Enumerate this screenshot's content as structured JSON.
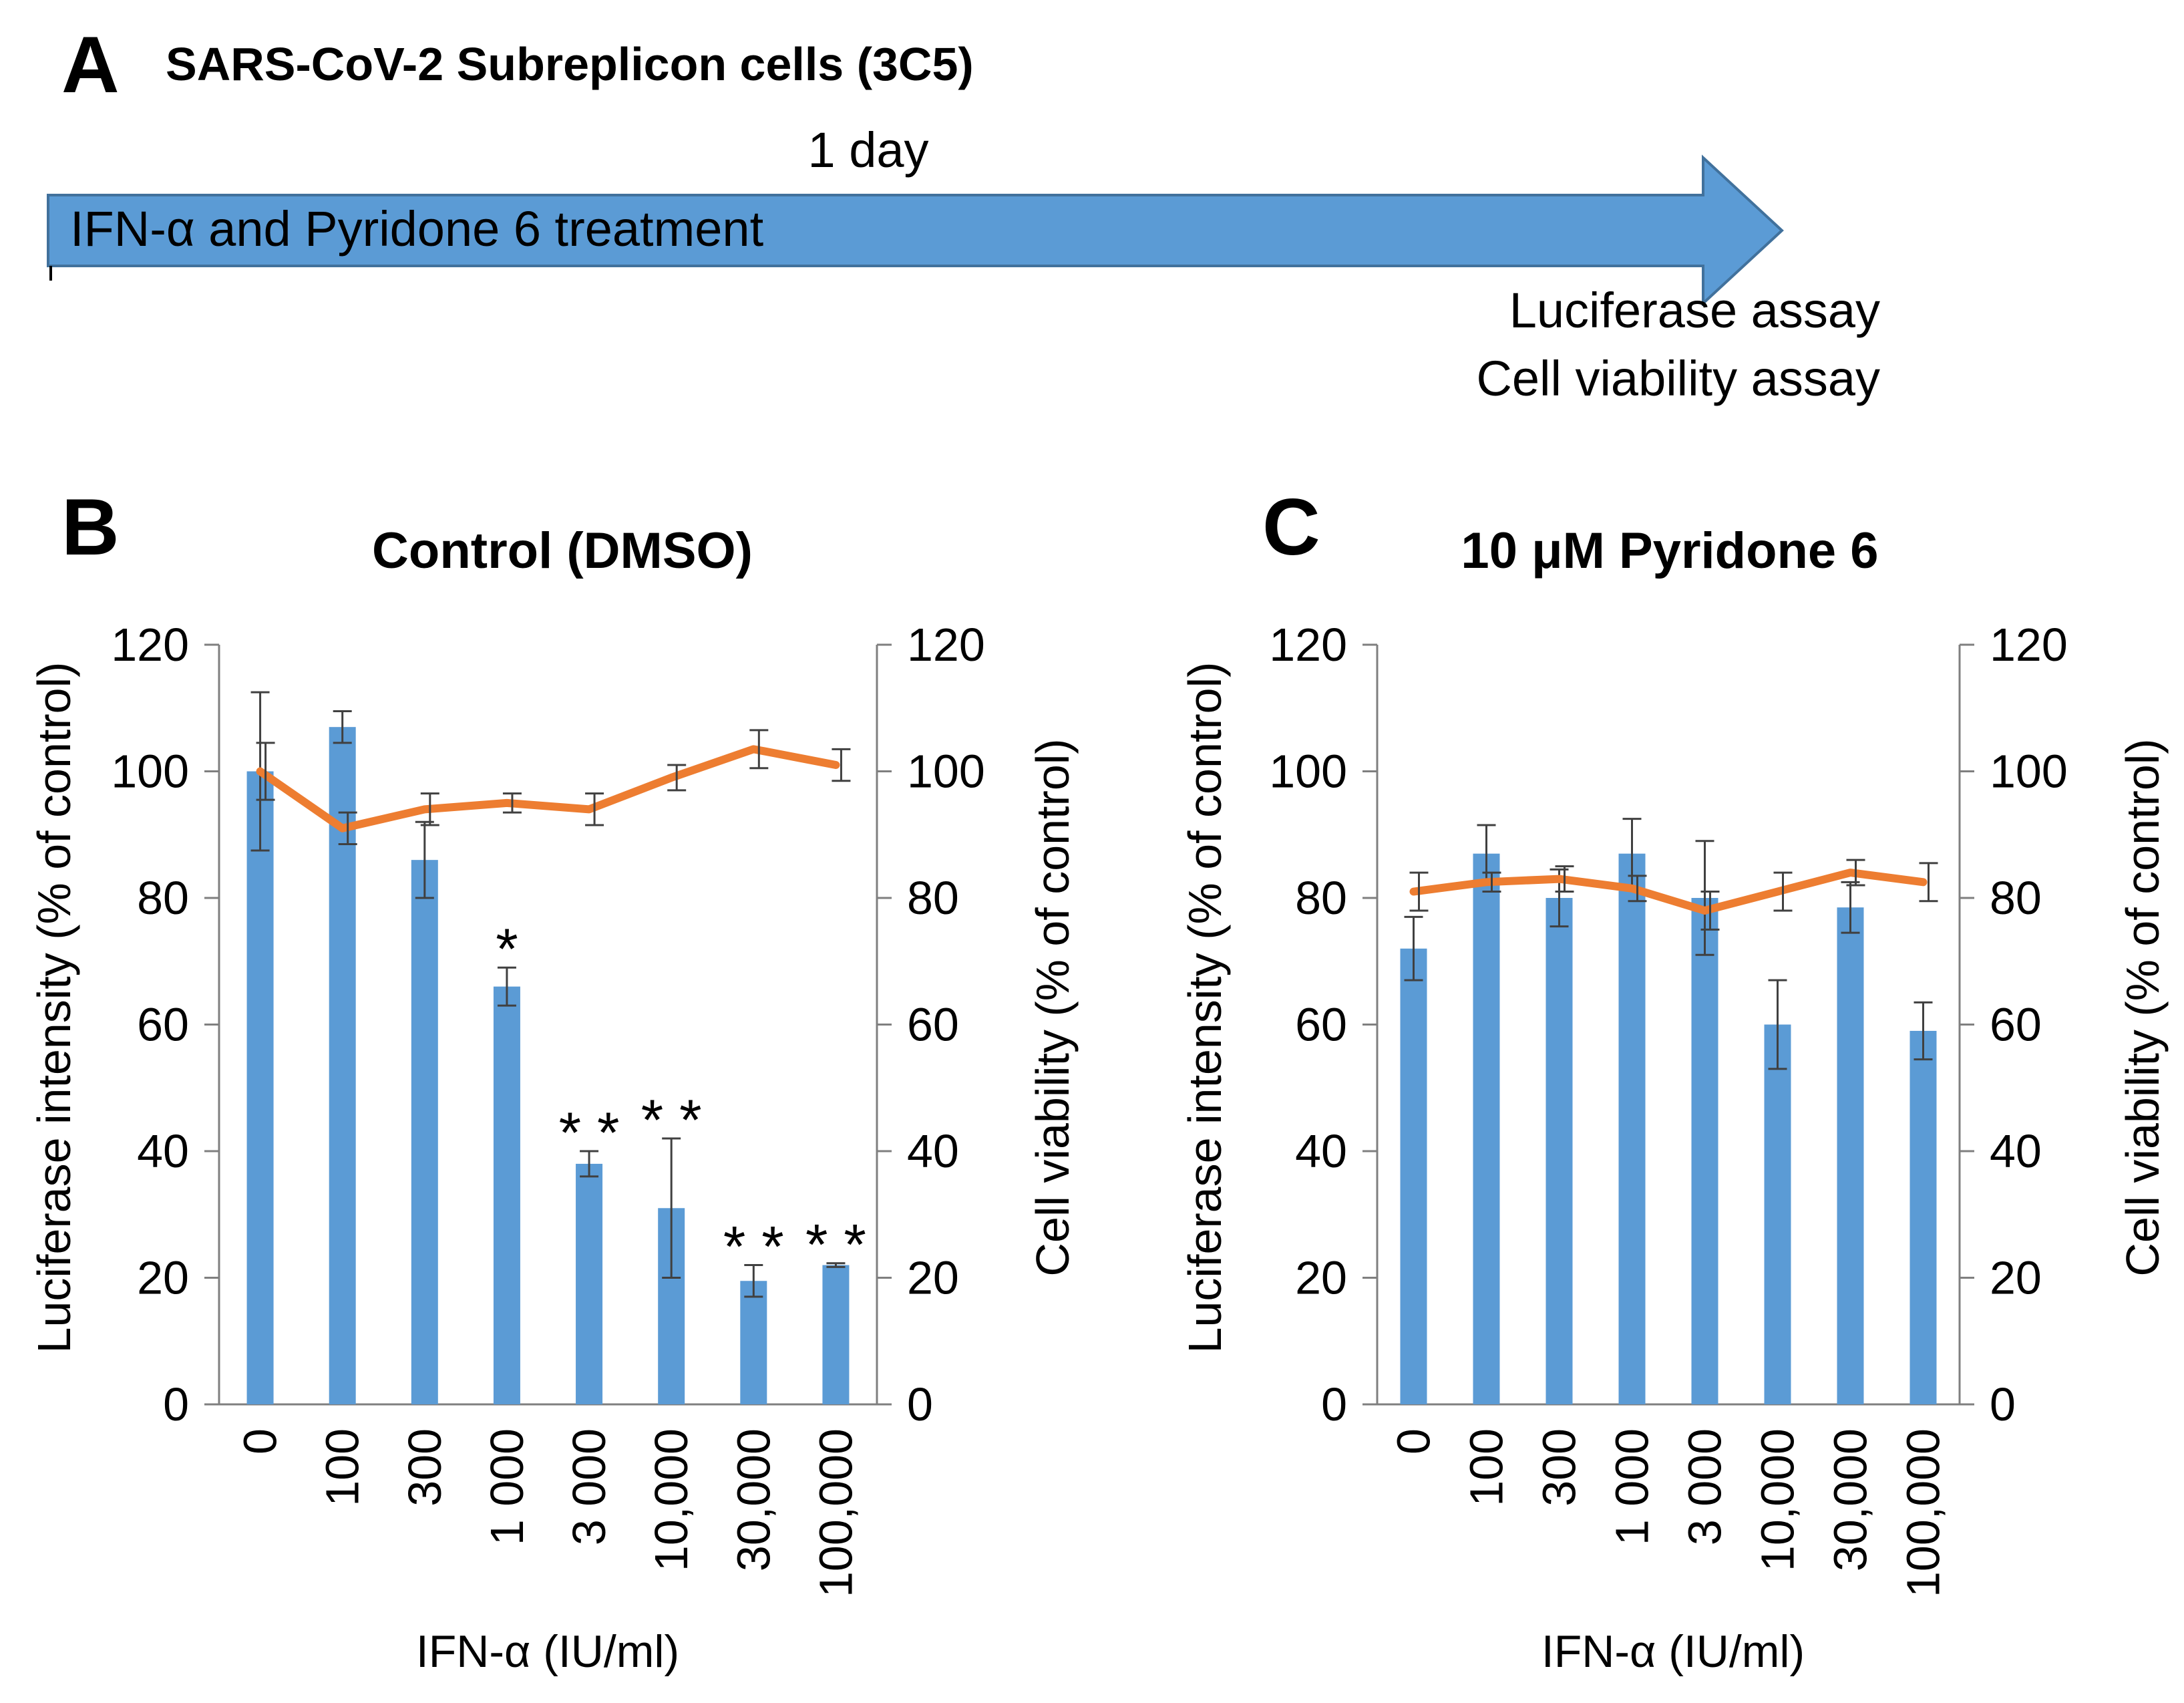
{
  "panel_a": {
    "letter": "A",
    "title": "SARS-CoV-2 Subreplicon cells (3C5)",
    "duration": "1 day",
    "arrow_label": "IFN-α  and Pyridone 6 treatment",
    "end_label_1": "Luciferase assay",
    "end_label_2": "Cell viability assay",
    "arrow_color": "#5B9BD5"
  },
  "chart_data": [
    {
      "panel": "B",
      "type": "bar",
      "title": "Control (DMSO)",
      "xlabel": "IFN-α (IU/ml)",
      "ylabel": "Luciferase intensity  (% of control)",
      "y2label": "Cell viability  (% of control)",
      "ylim": [
        0,
        120
      ],
      "y2lim": [
        0,
        120
      ],
      "yticks": [
        "0",
        "20",
        "40",
        "60",
        "80",
        "100",
        "120"
      ],
      "categories": [
        "0",
        "100",
        "300",
        "1 000",
        "3 000",
        "10,000",
        "30,000",
        "100,000"
      ],
      "grid": false,
      "series": [
        {
          "name": "Luciferase intensity",
          "type": "bar",
          "axis": "left",
          "color": "#5B9BD5",
          "values": [
            100,
            107,
            86,
            66,
            38,
            31,
            19.5,
            22
          ],
          "errors": [
            12.5,
            2.5,
            6,
            3,
            2,
            11,
            2.5,
            0.3
          ]
        },
        {
          "name": "Cell viability",
          "type": "line",
          "axis": "right",
          "color": "#ED7D31",
          "values": [
            100,
            91,
            94,
            95,
            94,
            99,
            103.5,
            101
          ],
          "errors": [
            4.5,
            2.5,
            2.5,
            1.5,
            2.5,
            2,
            3,
            2.5
          ]
        }
      ],
      "annotations": [
        "",
        "",
        "",
        "*",
        "* *",
        "* *",
        "* *",
        "* *"
      ]
    },
    {
      "panel": "C",
      "type": "bar",
      "title": "10 μM Pyridone 6",
      "xlabel": "IFN-α (IU/ml)",
      "ylabel": "Luciferase intensity  (% of control)",
      "y2label": "Cell viability  (% of control)",
      "ylim": [
        0,
        120
      ],
      "y2lim": [
        0,
        120
      ],
      "yticks": [
        "0",
        "20",
        "40",
        "60",
        "80",
        "100",
        "120"
      ],
      "categories": [
        "0",
        "100",
        "300",
        "1 000",
        "3 000",
        "10,000",
        "30,000",
        "100,000"
      ],
      "grid": false,
      "series": [
        {
          "name": "Luciferase intensity",
          "type": "bar",
          "axis": "left",
          "color": "#5B9BD5",
          "values": [
            72,
            87,
            80,
            87,
            80,
            60,
            78.5,
            59
          ],
          "errors": [
            5,
            4.5,
            4.5,
            5.5,
            9,
            7,
            4,
            4.5
          ]
        },
        {
          "name": "Cell viability",
          "type": "line",
          "axis": "right",
          "color": "#ED7D31",
          "values": [
            81,
            82.5,
            83,
            81.5,
            78,
            81,
            84,
            82.5
          ],
          "errors": [
            3,
            1.5,
            2,
            2,
            3,
            3,
            2,
            3
          ]
        }
      ],
      "annotations": [
        "",
        "",
        "",
        "",
        "",
        "",
        "",
        ""
      ]
    }
  ]
}
